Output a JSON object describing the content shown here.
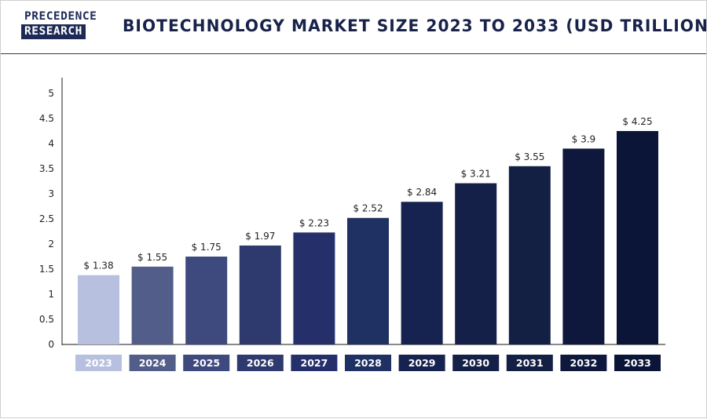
{
  "header": {
    "logo_line1": "PRECEDENCE",
    "logo_line2": "RESEARCH",
    "title": "BIOTECHNOLOGY MARKET SIZE 2023 TO 2033 (USD TRILLION)"
  },
  "colors": {
    "brand_navy": "#1e2a55",
    "title_text": "#18224a",
    "bars": [
      "#b7c0df",
      "#525d8a",
      "#3e4a7d",
      "#2e3a6d",
      "#25306b",
      "#1f3162",
      "#16224f",
      "#142047",
      "#132043",
      "#0e183c",
      "#0a1538"
    ],
    "category_boxes": [
      "#b7c0df",
      "#525d8a",
      "#3e4a7d",
      "#2e3a6d",
      "#25306b",
      "#1f3162",
      "#16224f",
      "#142047",
      "#132043",
      "#0e183c",
      "#0a1538"
    ]
  },
  "chart_data": {
    "type": "bar",
    "title": "BIOTECHNOLOGY MARKET SIZE 2023 TO 2033 (USD TRILLION)",
    "xlabel": "",
    "ylabel": "",
    "categories": [
      "2023",
      "2024",
      "2025",
      "2026",
      "2027",
      "2028",
      "2029",
      "2030",
      "2031",
      "2032",
      "2033"
    ],
    "values": [
      1.38,
      1.55,
      1.75,
      1.97,
      2.23,
      2.52,
      2.84,
      3.21,
      3.55,
      3.9,
      4.25
    ],
    "value_labels": [
      "$ 1.38",
      "$ 1.55",
      "$ 1.75",
      "$ 1.97",
      "$ 2.23",
      "$ 2.52",
      "$ 2.84",
      "$ 3.21",
      "$ 3.55",
      "$ 3.9",
      "$ 4.25"
    ],
    "ylim": [
      0,
      5
    ],
    "yticks": [
      "0",
      "0.5",
      "1",
      "1.5",
      "2",
      "2.5",
      "3",
      "3.5",
      "4",
      "4.5",
      "5"
    ],
    "grid": false,
    "legend": "none"
  }
}
